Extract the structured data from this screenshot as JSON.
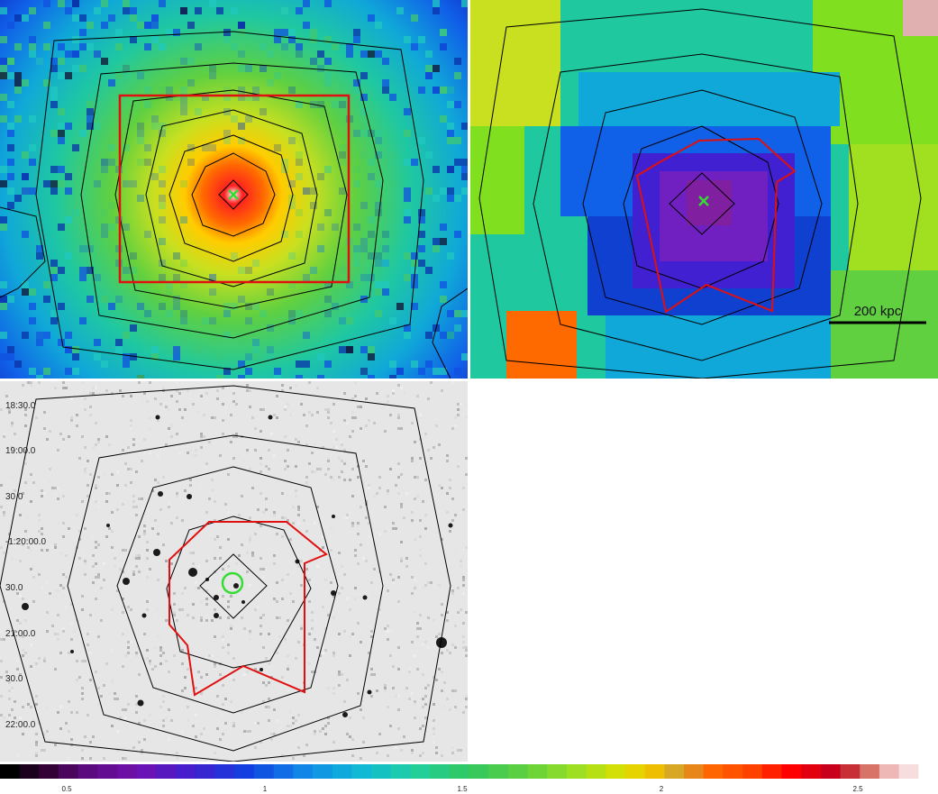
{
  "panels": {
    "xray_image": {
      "marker": "cross"
    },
    "temperature_map": {
      "marker": "cross",
      "scalebar_label": "200 kpc"
    },
    "optical_image": {
      "dec_labels": [
        "18:30.0",
        "19:00.0",
        "30.0",
        "-1:20:00.0",
        "30.0",
        "21:00.0",
        "30.0",
        "22:00.0"
      ],
      "marker": "circle"
    }
  },
  "colorbar": {
    "tick_labels": [
      "0.5",
      "1",
      "1.5",
      "2",
      "2.5"
    ]
  },
  "colors": {
    "contour": "#000000",
    "region": "#e01010",
    "marker": "#33dd33"
  }
}
